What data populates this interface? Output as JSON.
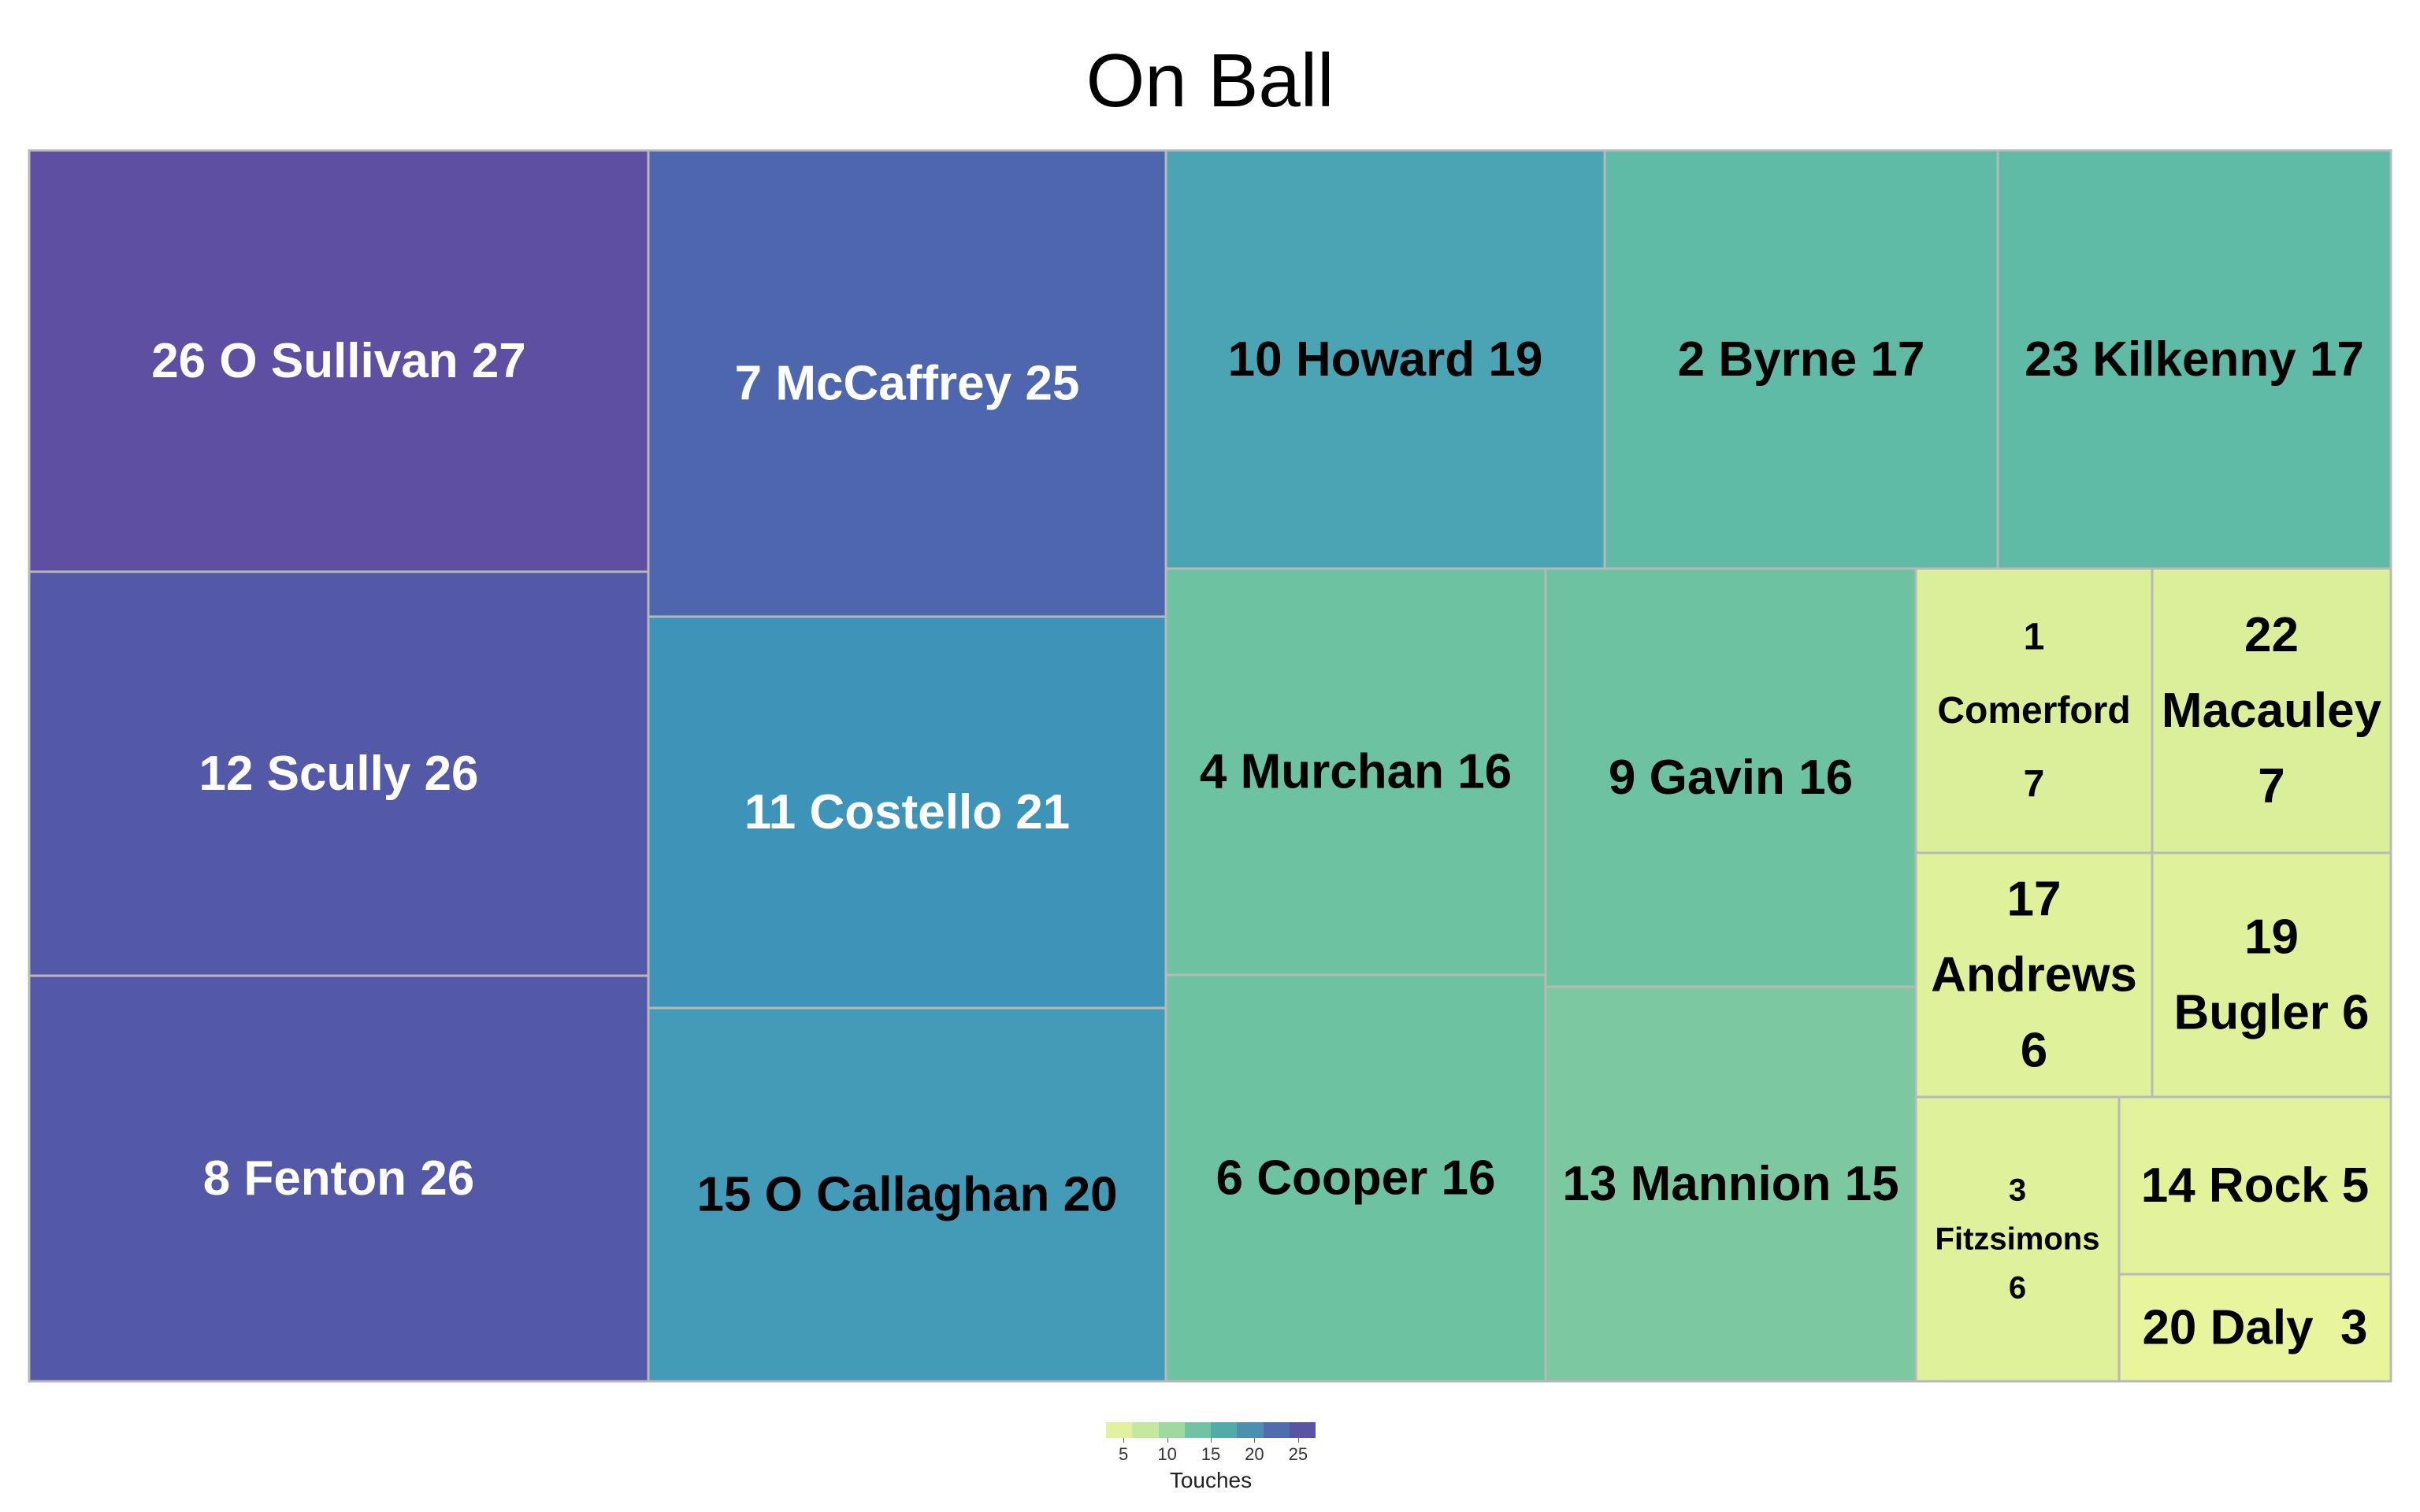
{
  "chart_data": {
    "type": "treemap",
    "title": "On Ball",
    "colorbar": {
      "title": "Touches",
      "ticks": [
        "5",
        "10",
        "15",
        "20",
        "25"
      ],
      "range": [
        3,
        27
      ],
      "colors": [
        "#e2f1a0",
        "#c5e8a0",
        "#9fd9a0",
        "#72c3a3",
        "#52aba8",
        "#4c8fb1",
        "#4e6cae",
        "#5b54a4"
      ]
    },
    "items": [
      {
        "number": "26",
        "name": "O Sullivan",
        "value": 27,
        "label_lines": [
          "26 O Sullivan 27"
        ],
        "text_color": "#ffffff",
        "fill": "#5e4fa2"
      },
      {
        "number": "12",
        "name": "Scully",
        "value": 26,
        "label_lines": [
          "12 Scully 26"
        ],
        "text_color": "#ffffff",
        "fill": "#5359a6"
      },
      {
        "number": "8",
        "name": "Fenton",
        "value": 26,
        "label_lines": [
          "8 Fenton 26"
        ],
        "text_color": "#ffffff",
        "fill": "#5359a6"
      },
      {
        "number": "7",
        "name": "McCaffrey",
        "value": 25,
        "label_lines": [
          "7 McCaffrey 25"
        ],
        "text_color": "#ffffff",
        "fill": "#4d66ad"
      },
      {
        "number": "11",
        "name": "Costello",
        "value": 21,
        "label_lines": [
          "11 Costello 21"
        ],
        "text_color": "#ffffff",
        "fill": "#3e93b8"
      },
      {
        "number": "15",
        "name": "O Callaghan",
        "value": 20,
        "label_lines": [
          "15 O Callaghan 20"
        ],
        "text_color": "#000000",
        "fill": "#439bb7"
      },
      {
        "number": "10",
        "name": "Howard",
        "value": 19,
        "label_lines": [
          "10 Howard 19"
        ],
        "text_color": "#000000",
        "fill": "#4aa4b3"
      },
      {
        "number": "2",
        "name": "Byrne",
        "value": 17,
        "label_lines": [
          "2 Byrne 17"
        ],
        "text_color": "#000000",
        "fill": "#5fbaa6"
      },
      {
        "number": "23",
        "name": "Kilkenny",
        "value": 17,
        "label_lines": [
          "23 Kilkenny 17"
        ],
        "text_color": "#000000",
        "fill": "#5fbaa6"
      },
      {
        "number": "4",
        "name": "Murchan",
        "value": 16,
        "label_lines": [
          "4 Murchan 16"
        ],
        "text_color": "#000000",
        "fill": "#6dc2a1"
      },
      {
        "number": "9",
        "name": "Gavin",
        "value": 16,
        "label_lines": [
          "9 Gavin 16"
        ],
        "text_color": "#000000",
        "fill": "#6dc2a1"
      },
      {
        "number": "6",
        "name": "Cooper",
        "value": 16,
        "label_lines": [
          "6 Cooper 16"
        ],
        "text_color": "#000000",
        "fill": "#6dc2a1"
      },
      {
        "number": "13",
        "name": "Mannion",
        "value": 15,
        "label_lines": [
          "13 Mannion 15"
        ],
        "text_color": "#000000",
        "fill": "#7cc9a1"
      },
      {
        "number": "1",
        "name": "Comerford",
        "value": 7,
        "label_lines": [
          "1",
          "Comerford",
          "7"
        ],
        "text_color": "#000000",
        "fill": "#dbef9a"
      },
      {
        "number": "22",
        "name": "Macauley",
        "value": 7,
        "label_lines": [
          "22",
          "Macauley",
          "7"
        ],
        "text_color": "#000000",
        "fill": "#dbef9a"
      },
      {
        "number": "17",
        "name": "Andrews",
        "value": 6,
        "label_lines": [
          "17",
          "Andrews",
          "6"
        ],
        "text_color": "#000000",
        "fill": "#dff19a"
      },
      {
        "number": "19",
        "name": "Bugler",
        "value": 6,
        "label_lines": [
          "19",
          "Bugler 6"
        ],
        "text_color": "#000000",
        "fill": "#dff19a"
      },
      {
        "number": "3",
        "name": "Fitzsimons",
        "value": 6,
        "label_lines": [
          "3",
          "Fitzsimons",
          "6"
        ],
        "text_color": "#000000",
        "fill": "#dff19a"
      },
      {
        "number": "14",
        "name": "Rock",
        "value": 5,
        "label_lines": [
          "14 Rock 5"
        ],
        "text_color": "#000000",
        "fill": "#e3f39b"
      },
      {
        "number": "20",
        "name": "Daly",
        "value": 3,
        "label_lines": [
          "20 Daly  3"
        ],
        "text_color": "#000000",
        "fill": "#e8f59d"
      }
    ]
  }
}
